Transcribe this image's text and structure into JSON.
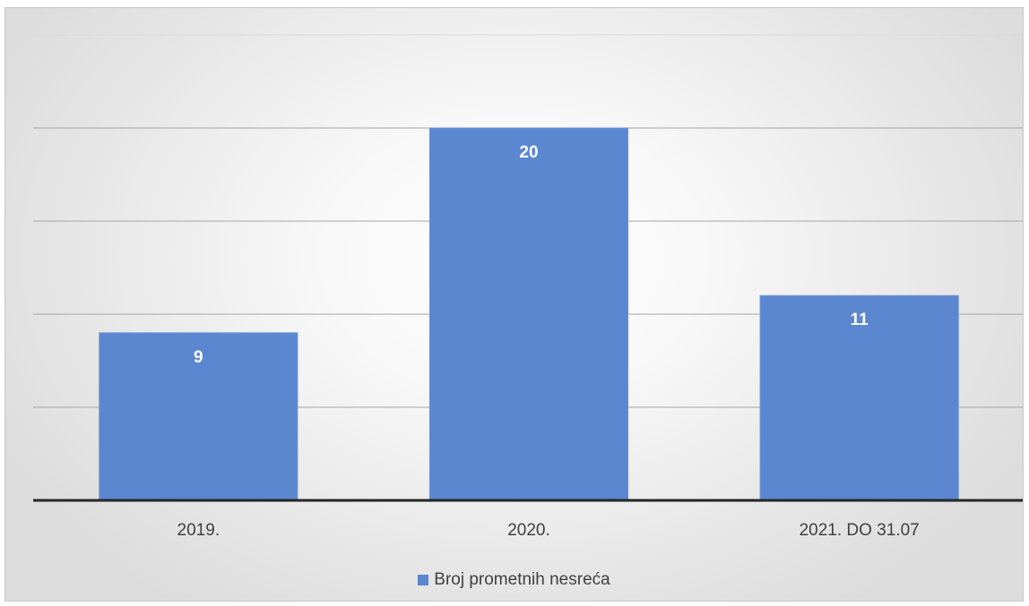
{
  "chart_data": {
    "type": "bar",
    "title": "",
    "xlabel": "",
    "ylabel": "",
    "categories": [
      "2019.",
      "2020.",
      "2021. DO 31.07"
    ],
    "series": [
      {
        "name": "Broj prometnih nesreća",
        "values": [
          9,
          20,
          11
        ],
        "color": "#5b86d0"
      }
    ],
    "ylim": [
      0,
      25
    ],
    "gridlines": true,
    "gridline_step": 5,
    "data_labels": true,
    "data_label_color": "#ffffff",
    "y_tick_labels_visible": false,
    "legend_position": "bottom"
  }
}
